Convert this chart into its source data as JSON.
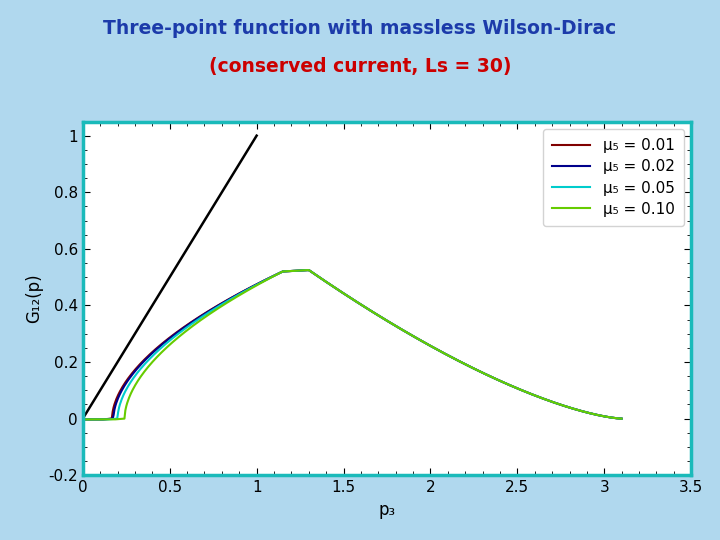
{
  "title_line1": "Three-point function with massless Wilson-Dirac",
  "title_line2": "(conserved current, Ls = 30)",
  "title_color1": "#1c3baa",
  "title_color2": "#cc0000",
  "xlabel": "p₃",
  "ylabel": "G₁₂(p)",
  "xlim": [
    0,
    3.5
  ],
  "ylim": [
    -0.2,
    1.05
  ],
  "xticks": [
    0,
    0.5,
    1.0,
    1.5,
    2.0,
    2.5,
    3.0,
    3.5
  ],
  "yticks": [
    -0.2,
    0,
    0.2,
    0.4,
    0.6,
    0.8,
    1
  ],
  "background_outer": "#b0d8ee",
  "background_plot": "#ffffff",
  "plot_border_color": "#1ababa",
  "series": [
    {
      "mu5": 0.01,
      "color": "#800000",
      "lw": 1.5
    },
    {
      "mu5": 0.02,
      "color": "#00008b",
      "lw": 1.5
    },
    {
      "mu5": 0.05,
      "color": "#00cccc",
      "lw": 1.5
    },
    {
      "mu5": 0.1,
      "color": "#66cc00",
      "lw": 1.5
    }
  ],
  "reference_line_color": "#000000",
  "reference_line_lw": 1.8,
  "legend_labels": [
    "μ₅ = 0.01",
    "μ₅ = 0.02",
    "μ₅ = 0.05",
    "μ₅ = 0.10"
  ]
}
